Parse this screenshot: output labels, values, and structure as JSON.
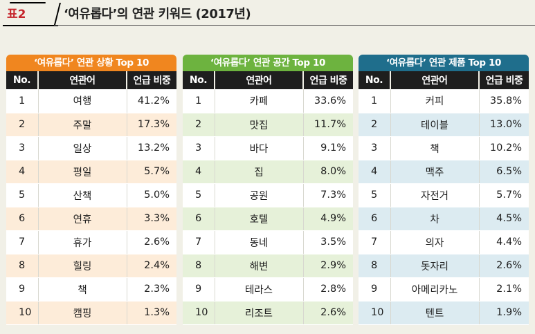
{
  "header": {
    "label": "표2",
    "title": "‘여유롭다’의 연관 키워드 (2017년)"
  },
  "columns": {
    "no": "No.",
    "keyword": "연관어",
    "share": "언급 비중"
  },
  "panels": [
    {
      "title": "‘여유롭다’ 연관 상황 Top 10",
      "accent": "#f0861f",
      "tint": "#fdecd9",
      "rows": [
        {
          "no": "1",
          "keyword": "여행",
          "share": "41.2%"
        },
        {
          "no": "2",
          "keyword": "주말",
          "share": "17.3%"
        },
        {
          "no": "3",
          "keyword": "일상",
          "share": "13.2%"
        },
        {
          "no": "4",
          "keyword": "평일",
          "share": "5.7%"
        },
        {
          "no": "5",
          "keyword": "산책",
          "share": "5.0%"
        },
        {
          "no": "6",
          "keyword": "연휴",
          "share": "3.3%"
        },
        {
          "no": "7",
          "keyword": "휴가",
          "share": "2.6%"
        },
        {
          "no": "8",
          "keyword": "힐링",
          "share": "2.4%"
        },
        {
          "no": "9",
          "keyword": "책",
          "share": "2.3%"
        },
        {
          "no": "10",
          "keyword": "캠핑",
          "share": "1.3%"
        }
      ]
    },
    {
      "title": "‘여유롭다’ 연관 공간 Top 10",
      "accent": "#6db33f",
      "tint": "#e6f1d9",
      "rows": [
        {
          "no": "1",
          "keyword": "카페",
          "share": "33.6%"
        },
        {
          "no": "2",
          "keyword": "맛집",
          "share": "11.7%"
        },
        {
          "no": "3",
          "keyword": "바다",
          "share": "9.1%"
        },
        {
          "no": "4",
          "keyword": "집",
          "share": "8.0%"
        },
        {
          "no": "5",
          "keyword": "공원",
          "share": "7.3%"
        },
        {
          "no": "6",
          "keyword": "호텔",
          "share": "4.9%"
        },
        {
          "no": "7",
          "keyword": "동네",
          "share": "3.5%"
        },
        {
          "no": "8",
          "keyword": "해변",
          "share": "2.9%"
        },
        {
          "no": "9",
          "keyword": "테라스",
          "share": "2.8%"
        },
        {
          "no": "10",
          "keyword": "리조트",
          "share": "2.6%"
        }
      ]
    },
    {
      "title": "‘여유롭다’ 연관 제품 Top 10",
      "accent": "#1f6e8c",
      "tint": "#dcebf1",
      "rows": [
        {
          "no": "1",
          "keyword": "커피",
          "share": "35.8%"
        },
        {
          "no": "2",
          "keyword": "테이블",
          "share": "13.0%"
        },
        {
          "no": "3",
          "keyword": "책",
          "share": "10.2%"
        },
        {
          "no": "4",
          "keyword": "맥주",
          "share": "6.5%"
        },
        {
          "no": "5",
          "keyword": "자전거",
          "share": "5.7%"
        },
        {
          "no": "6",
          "keyword": "차",
          "share": "4.5%"
        },
        {
          "no": "7",
          "keyword": "의자",
          "share": "4.4%"
        },
        {
          "no": "8",
          "keyword": "돗자리",
          "share": "2.6%"
        },
        {
          "no": "9",
          "keyword": "아메리카노",
          "share": "2.1%"
        },
        {
          "no": "10",
          "keyword": "텐트",
          "share": "1.9%"
        }
      ]
    }
  ]
}
